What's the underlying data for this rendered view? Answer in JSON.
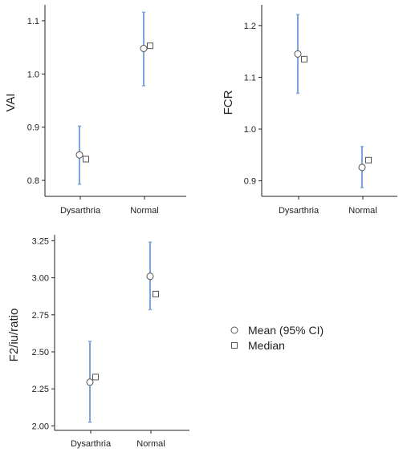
{
  "chart_data": [
    {
      "type": "scatter",
      "ylabel": "VAI",
      "xlabel": "",
      "categories": [
        "Dysarthria",
        "Normal"
      ],
      "yticks": [
        "0.8",
        "0.9",
        "1.0",
        "1.1"
      ],
      "ylim": [
        0.77,
        1.13
      ],
      "mean": [
        0.848,
        1.048
      ],
      "ci_low": [
        0.793,
        0.978
      ],
      "ci_high": [
        0.902,
        1.116
      ],
      "median": [
        0.84,
        1.053
      ]
    },
    {
      "type": "scatter",
      "ylabel": "FCR",
      "xlabel": "",
      "categories": [
        "Dysarthria",
        "Normal"
      ],
      "yticks": [
        "0.9",
        "1.0",
        "1.1",
        "1.2"
      ],
      "ylim": [
        0.87,
        1.24
      ],
      "mean": [
        1.145,
        0.926
      ],
      "ci_low": [
        1.069,
        0.887
      ],
      "ci_high": [
        1.221,
        0.966
      ],
      "median": [
        1.135,
        0.94
      ]
    },
    {
      "type": "scatter",
      "ylabel": "F2/iu/ratio",
      "xlabel": "",
      "categories": [
        "Dysarthria",
        "Normal"
      ],
      "yticks": [
        "2.00",
        "2.25",
        "2.50",
        "2.75",
        "3.00",
        "3.25"
      ],
      "ylim": [
        1.97,
        3.29
      ],
      "mean": [
        2.295,
        3.01
      ],
      "ci_low": [
        2.025,
        2.785
      ],
      "ci_high": [
        2.57,
        3.24
      ],
      "median": [
        2.33,
        2.89
      ]
    }
  ],
  "legend": {
    "mean_label": "Mean (95% CI)",
    "median_label": "Median"
  },
  "colors": {
    "ci": "#7fa3db",
    "axis": "#222222",
    "marker_fill": "#ffffff",
    "marker_stroke": "#555555"
  }
}
